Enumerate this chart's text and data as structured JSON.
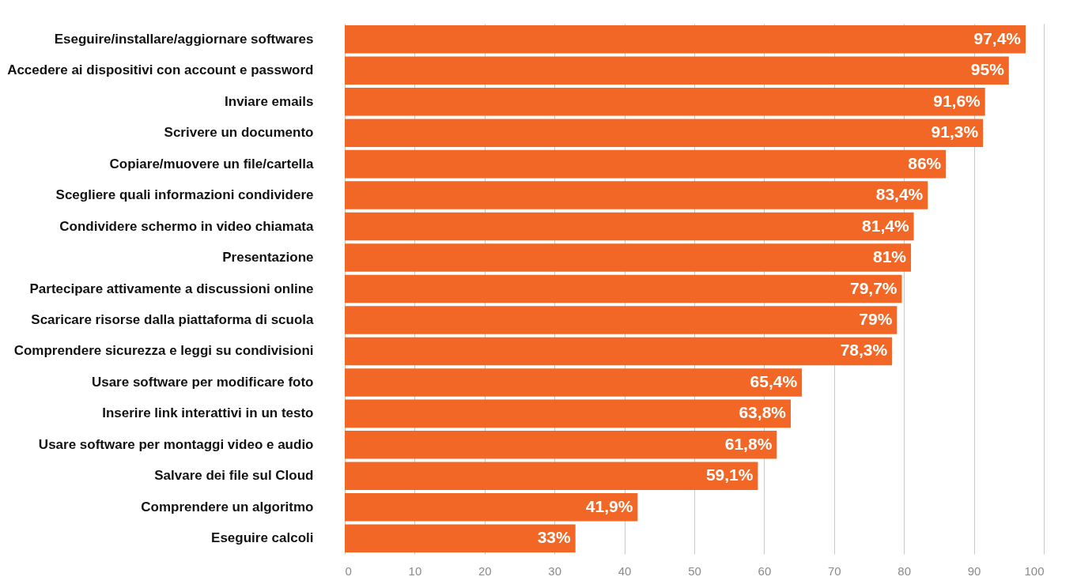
{
  "chart_data": {
    "type": "bar",
    "orientation": "horizontal",
    "categories": [
      "Eseguire/installare/aggiornare softwares",
      "Accedere ai dispositivi con account e password",
      "Inviare emails",
      "Scrivere un documento",
      "Copiare/muovere un file/cartella",
      "Scegliere quali informazioni condividere",
      "Condividere schermo in video chiamata",
      "Presentazione",
      "Partecipare attivamente a discussioni online",
      "Scaricare risorse dalla piattaforma di scuola",
      "Comprendere sicurezza e leggi su condivisioni",
      "Usare software per modificare foto",
      "Inserire link interattivi in un testo",
      "Usare software per montaggi video e audio",
      "Salvare dei file sul Cloud",
      "Comprendere un algoritmo",
      "Eseguire calcoli"
    ],
    "values": [
      97.4,
      95,
      91.6,
      91.3,
      86,
      83.4,
      81.4,
      81,
      79.7,
      79,
      78.3,
      65.4,
      63.8,
      61.8,
      59.1,
      41.9,
      33
    ],
    "value_labels": [
      "97,4%",
      "95%",
      "91,6%",
      "91,3%",
      "86%",
      "83,4%",
      "81,4%",
      "81%",
      "79,7%",
      "79%",
      "78,3%",
      "65,4%",
      "63,8%",
      "61,8%",
      "59,1%",
      "41,9%",
      "33%"
    ],
    "color": "#f26725",
    "xlim": [
      0,
      100
    ],
    "xticks": [
      0,
      10,
      20,
      30,
      40,
      50,
      60,
      70,
      80,
      90,
      100
    ],
    "grid": "x"
  }
}
